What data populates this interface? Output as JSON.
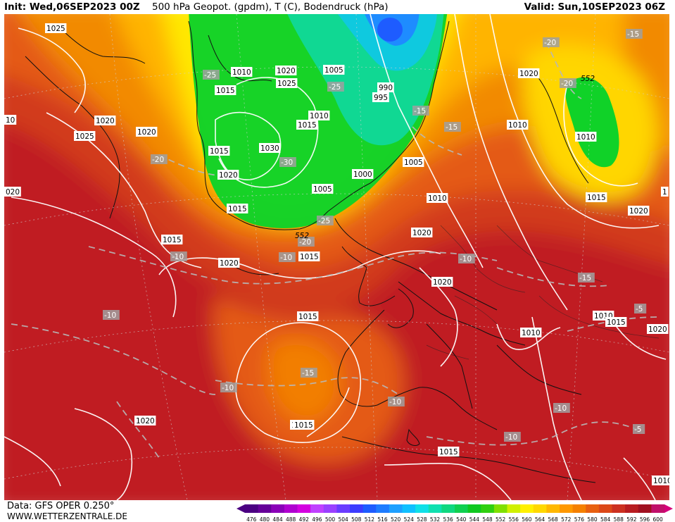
{
  "header": {
    "init": "Init: Wed,06SEP2023 00Z",
    "product": "500 hPa Geopot. (gpdm), T (C), Bodendruck (hPa)",
    "valid": "Valid: Sun,10SEP2023 06Z"
  },
  "footer": {
    "data_source": "Data: GFS OPER 0.250°",
    "website": "WWW.WETTERZENTRALE.DE"
  },
  "colorbar": {
    "ticks": [
      "476",
      "480",
      "484",
      "488",
      "492",
      "496",
      "500",
      "504",
      "508",
      "512",
      "516",
      "520",
      "524",
      "528",
      "532",
      "536",
      "540",
      "544",
      "548",
      "552",
      "556",
      "560",
      "564",
      "568",
      "572",
      "576",
      "580",
      "584",
      "588",
      "592",
      "596",
      "600"
    ],
    "colors": [
      "#4b0082",
      "#660099",
      "#8a00b8",
      "#b000d0",
      "#d400e0",
      "#c040ff",
      "#9a40ff",
      "#6a3cff",
      "#3c3cff",
      "#1e5cff",
      "#1e7cff",
      "#1ea0ff",
      "#10c0ff",
      "#10e0e8",
      "#10e0b0",
      "#10d880",
      "#10d050",
      "#10c820",
      "#30d010",
      "#80e000",
      "#d0f000",
      "#fff000",
      "#ffd800",
      "#ffb800",
      "#ff9800",
      "#f58000",
      "#e86010",
      "#dc4818",
      "#cc3020",
      "#b81c20",
      "#a01020",
      "#c0106a"
    ],
    "end_arrow_colors": [
      "#4b0082",
      "#d6007a"
    ]
  },
  "map_labels": {
    "pressure": [
      "1025",
      "1010",
      "1020",
      "1005",
      "1015",
      "1025",
      "990",
      "995",
      "1020",
      "1010",
      "1015",
      "1030",
      "1015",
      "1020",
      "1025",
      "1020",
      "1000",
      "1005",
      "1005",
      "1020",
      "1010",
      "1010",
      "1010",
      "1015",
      "1015",
      "1020",
      "1020",
      "1015",
      "1015",
      "1020",
      "1015",
      "1020",
      "1015",
      "1010",
      "1010",
      "1015",
      "1015",
      "1020",
      "1015",
      "1010",
      "1020"
    ],
    "temperature": [
      "-25",
      "-25",
      "-15",
      "-15",
      "-20",
      "-20",
      "-20",
      "-15",
      "-30",
      "-25",
      "-20",
      "-10",
      "-10",
      "-15",
      "-10",
      "-10",
      "-10",
      "-10",
      "-15",
      "-5",
      "-10",
      "-10",
      "-5"
    ],
    "height": [
      "552",
      "552"
    ],
    "edge": [
      "10",
      "020",
      "1"
    ]
  }
}
